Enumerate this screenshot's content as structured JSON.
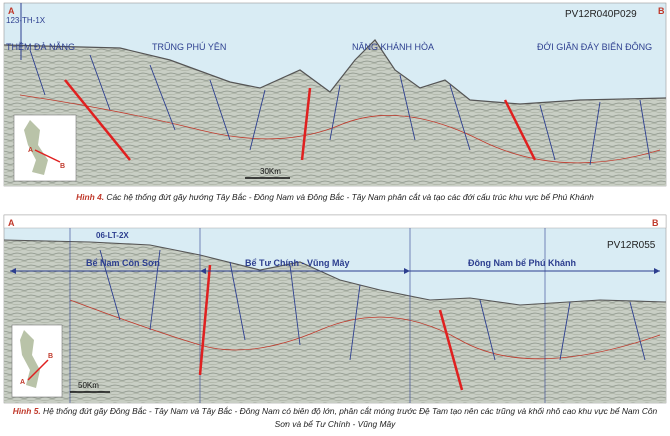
{
  "figure1": {
    "label_a": "A",
    "label_b": "B",
    "line_id": "PV12R040P029",
    "well": "123-TH-1X",
    "zones": [
      "THỀM ĐÀ NẴNG",
      "TRŨNG PHÚ YÊN",
      "NÂNG KHÁNH HÒA",
      "ĐỚI GIÃN ĐÁY BIỂN ĐÔNG"
    ],
    "scale": "30Km",
    "inset_a": "A",
    "inset_b": "B",
    "caption_label": "Hình 4.",
    "caption": "Các hệ thống đứt gãy hướng Tây Bắc - Đông Nam và Đông Bắc - Tây Nam phân cắt và tạo các đới cấu trúc khu vực bể Phú Khánh"
  },
  "figure2": {
    "label_a": "A",
    "label_b": "B",
    "line_id": "PV12R055",
    "well": "06-LT-2X",
    "zones": [
      "Bể Nam Côn Sơn",
      "Bể Tư Chính - Vũng Mây",
      "Đông Nam bể Phú Khánh"
    ],
    "scale": "50Km",
    "inset_a": "A",
    "inset_b": "B",
    "caption_label": "Hình 5.",
    "caption": "Hệ thống đứt gãy Đông Bắc - Tây Nam và Tây Bắc - Đông Nam có biên độ lớn, phân cắt móng trước Đệ Tam tạo nên các trũng và khối nhô cao khu vực bể Nam Côn Sơn và bể Tư Chính - Vũng Mây"
  }
}
